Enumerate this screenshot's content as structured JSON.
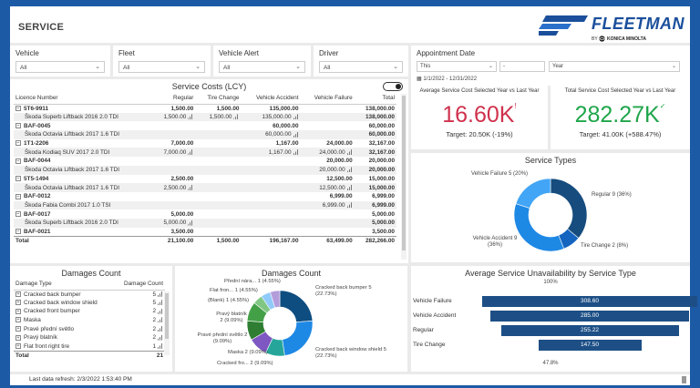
{
  "header": {
    "title": "SERVICE",
    "logo": {
      "word": "FLEETMAN",
      "by": "BY",
      "company": "KONICA MINOLTA"
    }
  },
  "slicers": [
    {
      "label": "Vehicle",
      "value": "All"
    },
    {
      "label": "Fleet",
      "value": "All"
    },
    {
      "label": "Vehicle Alert",
      "value": "All"
    },
    {
      "label": "Driver",
      "value": "All"
    }
  ],
  "appointment": {
    "label": "Appointment Date",
    "mode": "This",
    "count": "-",
    "unit": "Year",
    "range": "1/1/2022 - 12/31/2022"
  },
  "service_costs": {
    "title": "Service Costs (LCY)",
    "columns": [
      "Licence Number",
      "Regular",
      "Tire Change",
      "Vehicle Accident",
      "Vehicle Failure",
      "Total"
    ],
    "rows": [
      {
        "type": "parent",
        "cells": [
          "5T6-9911",
          "1,500.00",
          "1,500.00",
          "135,000.00",
          "",
          "138,000.00"
        ]
      },
      {
        "type": "child",
        "cells": [
          "Škoda Superb Liftback 2016 2.0 TDI",
          "1,500.00",
          "1,500.00",
          "135,000.00",
          "",
          "138,000.00"
        ]
      },
      {
        "type": "parent",
        "cells": [
          "BAF-0045",
          "",
          "",
          "60,000.00",
          "",
          "60,000.00"
        ]
      },
      {
        "type": "child",
        "cells": [
          "Škoda Octavia Liftback 2017 1.6 TDI",
          "",
          "",
          "60,000.00",
          "",
          "60,000.00"
        ]
      },
      {
        "type": "parent",
        "cells": [
          "1T1-2206",
          "7,000.00",
          "",
          "1,167.00",
          "24,000.00",
          "32,167.00"
        ]
      },
      {
        "type": "child",
        "cells": [
          "Škoda Kodiaq SUV 2017 2.0 TDI",
          "7,000.00",
          "",
          "1,167.00",
          "24,000.00",
          "32,167.00"
        ]
      },
      {
        "type": "parent",
        "cells": [
          "BAF-0044",
          "",
          "",
          "",
          "20,000.00",
          "20,000.00"
        ]
      },
      {
        "type": "child",
        "cells": [
          "Škoda Octavia Liftback 2017 1.6 TDI",
          "",
          "",
          "",
          "20,000.00",
          "20,000.00"
        ]
      },
      {
        "type": "parent",
        "cells": [
          "5T5-1494",
          "2,500.00",
          "",
          "",
          "12,500.00",
          "15,000.00"
        ]
      },
      {
        "type": "child",
        "cells": [
          "Škoda Octavia Liftback 2017 1.6 TDI",
          "2,500.00",
          "",
          "",
          "12,500.00",
          "15,000.00"
        ]
      },
      {
        "type": "parent",
        "cells": [
          "BAF-0012",
          "",
          "",
          "",
          "6,999.00",
          "6,999.00"
        ]
      },
      {
        "type": "child",
        "cells": [
          "Škoda Fabia Combi 2017 1.0 TSI",
          "",
          "",
          "",
          "6,999.00",
          "6,999.00"
        ]
      },
      {
        "type": "parent",
        "cells": [
          "BAF-0017",
          "5,000.00",
          "",
          "",
          "",
          "5,000.00"
        ]
      },
      {
        "type": "child",
        "cells": [
          "Škoda Superb Liftback 2016 2.0 TDI",
          "5,000.00",
          "",
          "",
          "",
          "5,000.00"
        ]
      },
      {
        "type": "parent",
        "cells": [
          "BAF-0021",
          "3,500.00",
          "",
          "",
          "",
          "3,500.00"
        ]
      }
    ],
    "total": [
      "Total",
      "21,100.00",
      "1,500.00",
      "196,167.00",
      "63,499.00",
      "282,266.00"
    ]
  },
  "kpi": [
    {
      "label": "Average Service Cost Selected Year vs Last Year",
      "value": "16.60K",
      "indicator": "!",
      "target": "Target: 20.50K (-19%)",
      "color": "#d0314d"
    },
    {
      "label": "Total Service Cost Selected Year vs Last Year",
      "value": "282.27K",
      "indicator": "✓",
      "target": "Target: 41.00K (+588.47%)",
      "color": "#1fa54a"
    }
  ],
  "service_types": {
    "title": "Service Types",
    "slices": [
      {
        "label": "Regular 9 (36%)",
        "value": 9,
        "color": "#164c7e"
      },
      {
        "label": "Tire Change 2 (8%)",
        "value": 2,
        "color": "#1565c0"
      },
      {
        "label": "Vehicle Accident 9 (36%)",
        "value": 9,
        "color": "#1e88e5"
      },
      {
        "label": "Vehicle Failure 5 (20%)",
        "value": 5,
        "color": "#42a5f5"
      }
    ]
  },
  "damages_table": {
    "title": "Damages Count",
    "columns": [
      "Damage Type",
      "Damage Count"
    ],
    "rows": [
      [
        "Cracked back bumper",
        "5"
      ],
      [
        "Cracked back window shield",
        "5"
      ],
      [
        "Cracked front bumper",
        "2"
      ],
      [
        "Maska",
        "2"
      ],
      [
        "Pravé přední světlo",
        "2"
      ],
      [
        "Pravý blatník",
        "2"
      ],
      [
        "Flat front right tire",
        "1"
      ]
    ],
    "total": [
      "Total",
      "21"
    ]
  },
  "damages_donut": {
    "title": "Damages Count",
    "slices": [
      {
        "label": "Cracked back bumper 5 (22.73%)",
        "value": 5,
        "color": "#0e4d80"
      },
      {
        "label": "Cracked back window shield 5 (22.73%)",
        "value": 5,
        "color": "#1e88e5"
      },
      {
        "label": "Cracked fro... 2 (9.09%)",
        "value": 2,
        "color": "#26a69a"
      },
      {
        "label": "Maska 2 (9.09%)",
        "value": 2,
        "color": "#7e57c2"
      },
      {
        "label": "Pravé přední světlo 2 (9.09%)",
        "value": 2,
        "color": "#2e7d32"
      },
      {
        "label": "Pravý blatník 2 (9.09%)",
        "value": 2,
        "color": "#43a047"
      },
      {
        "label": "(Blank) 1 (4.55%)",
        "value": 1,
        "color": "#81c784"
      },
      {
        "label": "Flat fron... 1 (4.55%)",
        "value": 1,
        "color": "#90caf9"
      },
      {
        "label": "Přední nára... 1 (4.55%)",
        "value": 1,
        "color": "#b39ddb"
      }
    ]
  },
  "avg_unavailability": {
    "title": "Average Service Unavailability by Service Type",
    "top_pct": "100%",
    "bottom_pct": "47.8%",
    "bars": [
      {
        "label": "Vehicle Failure",
        "value": 308.6,
        "display": "308.60"
      },
      {
        "label": "Vehicle Accident",
        "value": 285.0,
        "display": "285.00"
      },
      {
        "label": "Regular",
        "value": 255.22,
        "display": "255.22"
      },
      {
        "label": "Tire Change",
        "value": 147.5,
        "display": "147.50"
      }
    ],
    "color": "#1d4f86"
  },
  "footer": {
    "refresh": "Last data refresh: 2/3/2022 1:53:40 PM"
  }
}
